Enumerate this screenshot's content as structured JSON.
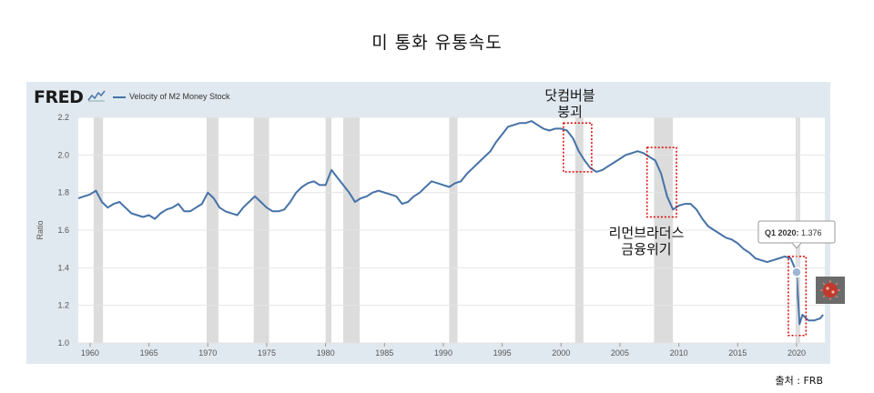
{
  "page_title": "미 통화 유통속도",
  "source_note": "출처 : FRB",
  "logo_text": "FRED",
  "callouts": {
    "dotcom": [
      "닷컴버블",
      "붕괴"
    ],
    "lehman": [
      "리먼브라더스",
      "금융위기"
    ]
  },
  "tooltip": {
    "label": "Q1 2020:",
    "value": "1.376"
  },
  "icons": {
    "fred_sparkline": "sparkline-icon",
    "covid": "virus-icon"
  },
  "colors": {
    "line": "#4572a7",
    "recession": "#dcdcdc",
    "panel": "#e1e9f0",
    "highlight_box": "#e00000"
  },
  "chart_data": {
    "type": "line",
    "ylabel": "Ratio",
    "xlim": [
      1959,
      2022.4
    ],
    "ylim": [
      1.0,
      2.2
    ],
    "y_ticks": [
      1.0,
      1.2,
      1.4,
      1.6,
      1.8,
      2.0,
      2.2
    ],
    "y_tick_labels": [
      "1.0",
      "1.2",
      "1.4",
      "1.6",
      "1.8",
      "2.0",
      "2.2"
    ],
    "x_ticks": [
      1960,
      1965,
      1970,
      1975,
      1980,
      1985,
      1990,
      1995,
      2000,
      2005,
      2010,
      2015,
      2020
    ],
    "x_tick_labels": [
      "1960",
      "1965",
      "1970",
      "1975",
      "1980",
      "1985",
      "1990",
      "1995",
      "2000",
      "2005",
      "2010",
      "2015",
      "2020"
    ],
    "grid": "horizontal",
    "legend_position": "top-left",
    "series": [
      {
        "name": "Velocity of M2 Money Stock",
        "x": [
          1959.0,
          1959.5,
          1960.0,
          1960.5,
          1961.0,
          1961.5,
          1962.0,
          1962.5,
          1963.0,
          1963.5,
          1964.0,
          1964.5,
          1965.0,
          1965.5,
          1966.0,
          1966.5,
          1967.0,
          1967.5,
          1968.0,
          1968.5,
          1969.0,
          1969.5,
          1970.0,
          1970.5,
          1971.0,
          1971.5,
          1972.0,
          1972.5,
          1973.0,
          1973.5,
          1974.0,
          1974.5,
          1975.0,
          1975.5,
          1976.0,
          1976.5,
          1977.0,
          1977.5,
          1978.0,
          1978.5,
          1979.0,
          1979.5,
          1980.0,
          1980.5,
          1981.0,
          1981.5,
          1982.0,
          1982.5,
          1983.0,
          1983.5,
          1984.0,
          1984.5,
          1985.0,
          1985.5,
          1986.0,
          1986.5,
          1987.0,
          1987.5,
          1988.0,
          1988.5,
          1989.0,
          1989.5,
          1990.0,
          1990.5,
          1991.0,
          1991.5,
          1992.0,
          1992.5,
          1993.0,
          1993.5,
          1994.0,
          1994.5,
          1995.0,
          1995.5,
          1996.0,
          1996.5,
          1997.0,
          1997.5,
          1998.0,
          1998.5,
          1999.0,
          1999.5,
          2000.0,
          2000.5,
          2001.0,
          2001.5,
          2002.0,
          2002.5,
          2003.0,
          2003.5,
          2004.0,
          2004.5,
          2005.0,
          2005.5,
          2006.0,
          2006.5,
          2007.0,
          2007.5,
          2008.0,
          2008.5,
          2009.0,
          2009.5,
          2010.0,
          2010.5,
          2011.0,
          2011.5,
          2012.0,
          2012.5,
          2013.0,
          2013.5,
          2014.0,
          2014.5,
          2015.0,
          2015.5,
          2016.0,
          2016.5,
          2017.0,
          2017.5,
          2018.0,
          2018.5,
          2019.0,
          2019.5,
          2020.0,
          2020.25,
          2020.5,
          2021.0,
          2021.5,
          2022.0,
          2022.25
        ],
        "values": [
          1.77,
          1.78,
          1.79,
          1.81,
          1.75,
          1.72,
          1.74,
          1.75,
          1.72,
          1.69,
          1.68,
          1.67,
          1.68,
          1.66,
          1.69,
          1.71,
          1.72,
          1.74,
          1.7,
          1.7,
          1.72,
          1.74,
          1.8,
          1.77,
          1.72,
          1.7,
          1.69,
          1.68,
          1.72,
          1.75,
          1.78,
          1.75,
          1.72,
          1.7,
          1.7,
          1.71,
          1.75,
          1.8,
          1.83,
          1.85,
          1.86,
          1.84,
          1.84,
          1.92,
          1.88,
          1.84,
          1.8,
          1.75,
          1.77,
          1.78,
          1.8,
          1.81,
          1.8,
          1.79,
          1.78,
          1.74,
          1.75,
          1.78,
          1.8,
          1.83,
          1.86,
          1.85,
          1.84,
          1.83,
          1.85,
          1.86,
          1.9,
          1.93,
          1.96,
          1.99,
          2.02,
          2.07,
          2.11,
          2.15,
          2.16,
          2.17,
          2.17,
          2.18,
          2.16,
          2.14,
          2.13,
          2.14,
          2.14,
          2.13,
          2.09,
          2.02,
          1.97,
          1.93,
          1.91,
          1.92,
          1.94,
          1.96,
          1.98,
          2.0,
          2.01,
          2.02,
          2.01,
          1.99,
          1.97,
          1.9,
          1.78,
          1.71,
          1.73,
          1.74,
          1.74,
          1.71,
          1.66,
          1.62,
          1.6,
          1.58,
          1.56,
          1.55,
          1.53,
          1.5,
          1.48,
          1.45,
          1.44,
          1.43,
          1.44,
          1.45,
          1.46,
          1.45,
          1.376,
          1.1,
          1.15,
          1.12,
          1.12,
          1.13,
          1.15
        ]
      }
    ],
    "recessions": [
      [
        1960.3,
        1961.1
      ],
      [
        1969.9,
        1970.9
      ],
      [
        1973.9,
        1975.2
      ],
      [
        1980.0,
        1980.5
      ],
      [
        1981.5,
        1982.9
      ],
      [
        1990.5,
        1991.2
      ],
      [
        2001.2,
        2001.9
      ],
      [
        2007.9,
        2009.5
      ],
      [
        2020.1,
        2020.3
      ]
    ],
    "annotation_boxes": [
      [
        2000.2,
        2002.6,
        1.91,
        2.17
      ],
      [
        2007.3,
        2009.8,
        1.67,
        2.04
      ],
      [
        2019.3,
        2020.8,
        1.04,
        1.46
      ]
    ]
  }
}
